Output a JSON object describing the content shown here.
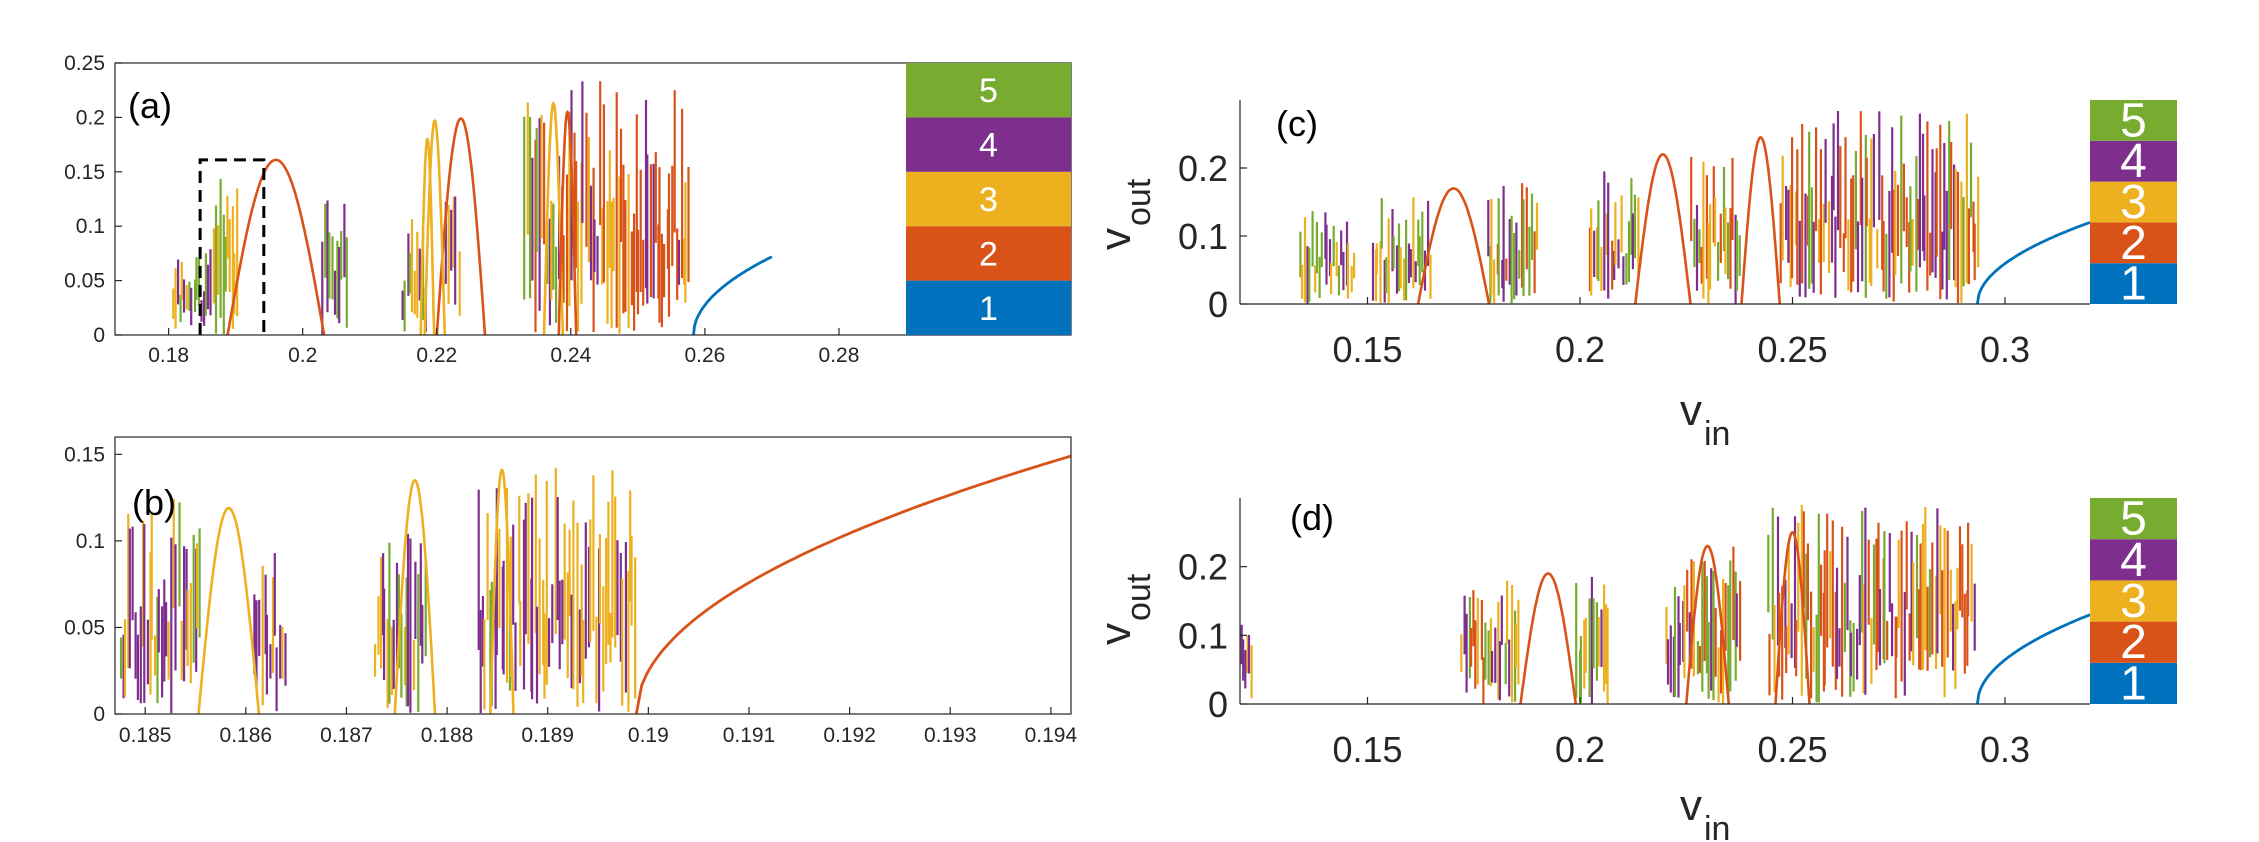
{
  "colors": {
    "c1": "#0072BD",
    "c2": "#D95319",
    "c3": "#EDB120",
    "c4": "#7E2F8E",
    "c5": "#77AC30",
    "axis": "#262626"
  },
  "chart_data": [
    {
      "id": "a",
      "type": "line",
      "panel_label": "(a)",
      "xlabel": "",
      "ylabel": "",
      "xlim": [
        0.172,
        0.29
      ],
      "ylim": [
        0,
        0.25
      ],
      "x_ticks": [
        0.18,
        0.2,
        0.22,
        0.24,
        0.26,
        0.28
      ],
      "x_tick_labels": [
        "0.18",
        "0.2",
        "0.22",
        "0.24",
        "0.26",
        "0.28"
      ],
      "y_ticks": [
        0,
        0.05,
        0.1,
        0.15,
        0.2,
        0.25
      ],
      "y_tick_labels": [
        "0",
        "0.05",
        "0.1",
        "0.15",
        "0.2",
        "0.25"
      ],
      "grid": false,
      "zoom_box": {
        "x": [
          0.1847,
          0.1942
        ],
        "y": [
          0,
          0.161
        ]
      },
      "colorbar": {
        "labels": [
          "1",
          "2",
          "3",
          "4",
          "5"
        ]
      },
      "arcs": [
        {
          "color": "c2",
          "x": [
            0.1888,
            0.2032
          ],
          "peak": 0.161
        },
        {
          "color": "c2",
          "x": [
            0.22,
            0.2272
          ],
          "peak": 0.199
        },
        {
          "color": "c3",
          "x": [
            0.2182,
            0.2212
          ],
          "peak": 0.197
        },
        {
          "color": "c3",
          "x": [
            0.236,
            0.2388
          ],
          "peak": 0.213
        },
        {
          "color": "c2",
          "x": [
            0.2382,
            0.2408
          ],
          "peak": 0.205
        },
        {
          "color": "c3",
          "x": [
            0.2176,
            0.2196
          ],
          "peak": 0.18
        }
      ],
      "period1_curve": {
        "color": "c1",
        "x": [
          0.2583,
          0.27
        ],
        "y_end": 0.072
      },
      "regions": [
        {
          "x": [
            0.1805,
            0.1858
          ],
          "ymax": 0.078,
          "colors": [
            "c5",
            "c4",
            "c3"
          ]
        },
        {
          "x": [
            0.1858,
            0.1905
          ],
          "ymax": 0.148,
          "colors": [
            "c4",
            "c3",
            "c5",
            "c3"
          ]
        },
        {
          "x": [
            0.2028,
            0.2068
          ],
          "ymax": 0.136,
          "colors": [
            "c4",
            "c3",
            "c5"
          ]
        },
        {
          "x": [
            0.2148,
            0.2185
          ],
          "ymax": 0.115,
          "colors": [
            "c5",
            "c4",
            "c3"
          ]
        },
        {
          "x": [
            0.2212,
            0.2235
          ],
          "ymax": 0.208,
          "colors": [
            "c3",
            "c4"
          ]
        },
        {
          "x": [
            0.233,
            0.2392
          ],
          "ymax": 0.215,
          "colors": [
            "c4",
            "c3",
            "c2",
            "c5"
          ]
        },
        {
          "x": [
            0.2392,
            0.2578
          ],
          "ymax": 0.236,
          "colors": [
            "c3",
            "c2",
            "c4",
            "c2",
            "c2"
          ]
        }
      ]
    },
    {
      "id": "b",
      "type": "line",
      "panel_label": "(b)",
      "xlabel": "",
      "ylabel": "",
      "xlim": [
        0.1847,
        0.1942
      ],
      "ylim": [
        0,
        0.16
      ],
      "x_ticks": [
        0.185,
        0.186,
        0.187,
        0.188,
        0.189,
        0.19,
        0.191,
        0.192,
        0.193,
        0.194
      ],
      "x_tick_labels": [
        "0.185",
        "0.186",
        "0.187",
        "0.188",
        "0.189",
        "0.19",
        "0.191",
        "0.192",
        "0.193",
        "0.194"
      ],
      "y_ticks": [
        0,
        0.05,
        0.1,
        0.15
      ],
      "y_tick_labels": [
        "0",
        "0.05",
        "0.1",
        "0.15"
      ],
      "grid": false,
      "arcs": [
        {
          "color": "c3",
          "x": [
            0.18553,
            0.18613
          ],
          "peak": 0.119
        },
        {
          "color": "c3",
          "x": [
            0.18748,
            0.18788
          ],
          "peak": 0.135
        },
        {
          "color": "c3",
          "x": [
            0.18843,
            0.18866
          ],
          "peak": 0.141
        }
      ],
      "branch_curve": {
        "color": "c2",
        "x": [
          0.18988,
          0.1942
        ],
        "y_end": 0.149
      },
      "regions": [
        {
          "x": [
            0.18475,
            0.18556
          ],
          "ymax": 0.125,
          "colors": [
            "c5",
            "c4",
            "c4",
            "c3"
          ]
        },
        {
          "x": [
            0.18608,
            0.1864
          ],
          "ymax": 0.095,
          "colors": [
            "c4",
            "c3"
          ]
        },
        {
          "x": [
            0.18728,
            0.1878
          ],
          "ymax": 0.11,
          "colors": [
            "c4",
            "c5",
            "c3"
          ]
        },
        {
          "x": [
            0.1883,
            0.1887
          ],
          "ymax": 0.14,
          "colors": [
            "c4",
            "c3",
            "c5"
          ]
        },
        {
          "x": [
            0.1887,
            0.18988
          ],
          "ymax": 0.146,
          "colors": [
            "c4",
            "c3",
            "c3",
            "c4",
            "c3"
          ]
        }
      ]
    },
    {
      "id": "c",
      "type": "line",
      "panel_label": "(c)",
      "xlabel": "v",
      "xlabel_sub": "in",
      "ylabel": "v",
      "ylabel_sub": "out",
      "xlim": [
        0.12,
        0.32
      ],
      "ylim": [
        0,
        0.3
      ],
      "x_ticks": [
        0.15,
        0.2,
        0.25,
        0.3
      ],
      "x_tick_labels": [
        "0.15",
        "0.2",
        "0.25",
        "0.3"
      ],
      "y_ticks": [
        0,
        0.1,
        0.2
      ],
      "y_tick_labels": [
        "0",
        "0.1",
        "0.2"
      ],
      "grid": false,
      "colorbar": {
        "labels": [
          "1",
          "2",
          "3",
          "4",
          "5"
        ]
      },
      "arcs": [
        {
          "color": "c2",
          "x": [
            0.1619,
            0.1786
          ],
          "peak": 0.17
        },
        {
          "color": "c2",
          "x": [
            0.213,
            0.226
          ],
          "peak": 0.22
        },
        {
          "color": "c2",
          "x": [
            0.238,
            0.247
          ],
          "peak": 0.245
        }
      ],
      "period1_curve": {
        "color": "c1",
        "x": [
          0.2935,
          0.32
        ],
        "y_end": 0.12
      },
      "regions": [
        {
          "x": [
            0.134,
            0.147
          ],
          "ymax": 0.14,
          "colors": [
            "c5",
            "c4",
            "c3"
          ]
        },
        {
          "x": [
            0.151,
            0.165
          ],
          "ymax": 0.16,
          "colors": [
            "c4",
            "c3",
            "c5"
          ]
        },
        {
          "x": [
            0.178,
            0.19
          ],
          "ymax": 0.18,
          "colors": [
            "c5",
            "c4",
            "c3",
            "c2"
          ]
        },
        {
          "x": [
            0.202,
            0.214
          ],
          "ymax": 0.2,
          "colors": [
            "c4",
            "c3",
            "c5",
            "c2"
          ]
        },
        {
          "x": [
            0.226,
            0.238
          ],
          "ymax": 0.23,
          "colors": [
            "c4",
            "c3",
            "c5",
            "c2"
          ]
        },
        {
          "x": [
            0.247,
            0.294
          ],
          "ymax": 0.29,
          "colors": [
            "c4",
            "c3",
            "c2",
            "c5",
            "c2"
          ]
        }
      ]
    },
    {
      "id": "d",
      "type": "line",
      "panel_label": "(d)",
      "xlabel": "v",
      "xlabel_sub": "in",
      "ylabel": "v",
      "ylabel_sub": "out",
      "xlim": [
        0.12,
        0.32
      ],
      "ylim": [
        0,
        0.3
      ],
      "x_ticks": [
        0.15,
        0.2,
        0.25,
        0.3
      ],
      "x_tick_labels": [
        "0.15",
        "0.2",
        "0.25",
        "0.3"
      ],
      "y_ticks": [
        0,
        0.1,
        0.2
      ],
      "y_tick_labels": [
        "0",
        "0.1",
        "0.2"
      ],
      "grid": false,
      "colorbar": {
        "labels": [
          "1",
          "2",
          "3",
          "4",
          "5"
        ]
      },
      "arcs": [
        {
          "color": "c2",
          "x": [
            0.186,
            0.199
          ],
          "peak": 0.19
        },
        {
          "color": "c2",
          "x": [
            0.225,
            0.235
          ],
          "peak": 0.23
        },
        {
          "color": "c2",
          "x": [
            0.246,
            0.254
          ],
          "peak": 0.25
        }
      ],
      "period1_curve": {
        "color": "c1",
        "x": [
          0.2935,
          0.32
        ],
        "y_end": 0.13
      },
      "regions": [
        {
          "x": [
            0.1202,
            0.123
          ],
          "ymax": 0.12,
          "colors": [
            "c3",
            "c4"
          ]
        },
        {
          "x": [
            0.172,
            0.186
          ],
          "ymax": 0.18,
          "colors": [
            "c5",
            "c4",
            "c3",
            "c2"
          ]
        },
        {
          "x": [
            0.199,
            0.207
          ],
          "ymax": 0.19,
          "colors": [
            "c4",
            "c3",
            "c5"
          ]
        },
        {
          "x": [
            0.22,
            0.238
          ],
          "ymax": 0.23,
          "colors": [
            "c4",
            "c3",
            "c5",
            "c2"
          ]
        },
        {
          "x": [
            0.244,
            0.293
          ],
          "ymax": 0.29,
          "colors": [
            "c4",
            "c3",
            "c2",
            "c5",
            "c2"
          ]
        }
      ]
    }
  ]
}
